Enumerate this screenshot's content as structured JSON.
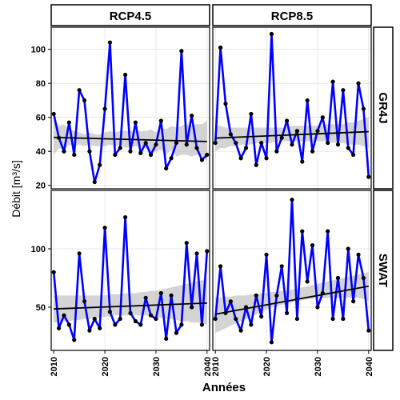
{
  "chart_data": {
    "type": "line",
    "xlabel": "Années",
    "ylabel": "Débit [m³/s]",
    "col_facets": [
      "RCP4.5",
      "RCP8.5"
    ],
    "row_facets": [
      "GR4J",
      "SWAT"
    ],
    "xlim": [
      2009.5,
      2040.5
    ],
    "x_ticks": [
      2010,
      2020,
      2030,
      2040
    ],
    "grid": true,
    "panels": [
      {
        "col": "RCP4.5",
        "row": "GR4J",
        "ylim": [
          18,
          113
        ],
        "y_ticks": [
          20,
          40,
          60,
          80,
          100
        ],
        "x": [
          2010,
          2011,
          2012,
          2013,
          2014,
          2015,
          2016,
          2017,
          2018,
          2019,
          2020,
          2021,
          2022,
          2023,
          2024,
          2025,
          2026,
          2027,
          2028,
          2029,
          2030,
          2031,
          2032,
          2033,
          2034,
          2035,
          2036,
          2037,
          2038,
          2039,
          2040
        ],
        "values": [
          62,
          48,
          40,
          57,
          38,
          76,
          70,
          40,
          22,
          32,
          65,
          104,
          38,
          42,
          85,
          40,
          57,
          39,
          45,
          38,
          44,
          58,
          30,
          36,
          45,
          99,
          44,
          61,
          42,
          35,
          38
        ],
        "trend": [
          48.2,
          45.8
        ],
        "band_lower": [
          38,
          42,
          41,
          44,
          43,
          44,
          43,
          44,
          43,
          43,
          43,
          44,
          43,
          44,
          42,
          43,
          43,
          43,
          42,
          40,
          40,
          41,
          38,
          41,
          37,
          38,
          38,
          37,
          38,
          38,
          34
        ],
        "band_upper": [
          59,
          55,
          56,
          53,
          52,
          51,
          50,
          51,
          50,
          50,
          51,
          52,
          51,
          52,
          52,
          52,
          52,
          52,
          52,
          53,
          51,
          54,
          53,
          55,
          54,
          55,
          56,
          55,
          56,
          56,
          58
        ]
      },
      {
        "col": "RCP8.5",
        "row": "GR4J",
        "ylim": [
          18,
          113
        ],
        "y_ticks": [
          20,
          40,
          60,
          80,
          100
        ],
        "x": [
          2010,
          2011,
          2012,
          2013,
          2014,
          2015,
          2016,
          2017,
          2018,
          2019,
          2020,
          2021,
          2022,
          2023,
          2024,
          2025,
          2026,
          2027,
          2028,
          2029,
          2030,
          2031,
          2032,
          2033,
          2034,
          2035,
          2036,
          2037,
          2038,
          2039,
          2040
        ],
        "values": [
          45,
          101,
          68,
          50,
          45,
          36,
          42,
          62,
          32,
          45,
          36,
          109,
          40,
          48,
          58,
          44,
          52,
          34,
          70,
          40,
          52,
          60,
          45,
          81,
          44,
          76,
          42,
          38,
          80,
          65,
          25
        ],
        "trend": [
          47.8,
          51.6
        ],
        "band_lower": [
          40,
          42,
          42,
          43,
          43,
          44,
          44,
          44,
          45,
          45,
          45,
          45,
          46,
          46,
          46,
          46,
          46,
          46,
          46,
          46,
          46,
          46,
          46,
          45,
          45,
          45,
          44,
          44,
          44,
          43,
          42
        ],
        "band_upper": [
          55,
          55,
          54,
          54,
          54,
          54,
          54,
          54,
          54,
          54,
          54,
          54,
          54,
          54,
          54,
          55,
          55,
          55,
          55,
          55,
          55,
          55,
          56,
          56,
          56,
          56,
          57,
          57,
          58,
          59,
          60
        ]
      },
      {
        "col": "RCP4.5",
        "row": "SWAT",
        "ylim": [
          13,
          150
        ],
        "y_ticks": [
          50,
          100
        ],
        "x": [
          2010,
          2011,
          2012,
          2013,
          2014,
          2015,
          2016,
          2017,
          2018,
          2019,
          2020,
          2021,
          2022,
          2023,
          2024,
          2025,
          2026,
          2027,
          2028,
          2029,
          2030,
          2031,
          2032,
          2033,
          2034,
          2035,
          2036,
          2037,
          2038,
          2039,
          2040
        ],
        "values": [
          80,
          32,
          43,
          35,
          22,
          96,
          55,
          30,
          40,
          32,
          118,
          46,
          35,
          40,
          127,
          45,
          38,
          35,
          58,
          43,
          40,
          62,
          23,
          60,
          28,
          35,
          105,
          50,
          96,
          35,
          98
        ],
        "trend": [
          48.5,
          53.5
        ],
        "band_lower": [
          37,
          37,
          38,
          38,
          39,
          39,
          40,
          40,
          41,
          41,
          42,
          42,
          43,
          43,
          43,
          43,
          43,
          43,
          43,
          42,
          41,
          41,
          40,
          40,
          39,
          38,
          38,
          37,
          37,
          36,
          35
        ],
        "band_upper": [
          60,
          60,
          60,
          60,
          60,
          60,
          60,
          60,
          60,
          60,
          60,
          61,
          61,
          61,
          62,
          62,
          62,
          63,
          63,
          64,
          64,
          65,
          66,
          67,
          68,
          69,
          70,
          71,
          72,
          73,
          74
        ]
      },
      {
        "col": "RCP8.5",
        "row": "SWAT",
        "ylim": [
          13,
          150
        ],
        "y_ticks": [
          50,
          100
        ],
        "x": [
          2010,
          2011,
          2012,
          2013,
          2014,
          2015,
          2016,
          2017,
          2018,
          2019,
          2020,
          2021,
          2022,
          2023,
          2024,
          2025,
          2026,
          2027,
          2028,
          2029,
          2030,
          2031,
          2032,
          2033,
          2034,
          2035,
          2036,
          2037,
          2038,
          2039,
          2040
        ],
        "values": [
          40,
          85,
          45,
          55,
          40,
          30,
          50,
          35,
          60,
          42,
          95,
          20,
          60,
          85,
          45,
          142,
          40,
          115,
          72,
          103,
          50,
          62,
          115,
          40,
          75,
          40,
          100,
          55,
          95,
          75,
          30
        ],
        "trend": [
          44,
          68
        ],
        "band_lower": [
          28,
          30,
          32,
          34,
          36,
          38,
          40,
          42,
          44,
          46,
          48,
          50,
          51,
          52,
          53,
          54,
          55,
          56,
          57,
          57,
          58,
          58,
          58,
          58,
          58,
          58,
          58,
          58,
          58,
          57,
          55
        ],
        "band_upper": [
          58,
          58,
          59,
          59,
          60,
          60,
          60,
          61,
          61,
          62,
          62,
          63,
          63,
          64,
          64,
          65,
          66,
          67,
          68,
          69,
          70,
          71,
          72,
          73,
          74,
          75,
          76,
          77,
          78,
          79,
          80
        ]
      }
    ]
  }
}
